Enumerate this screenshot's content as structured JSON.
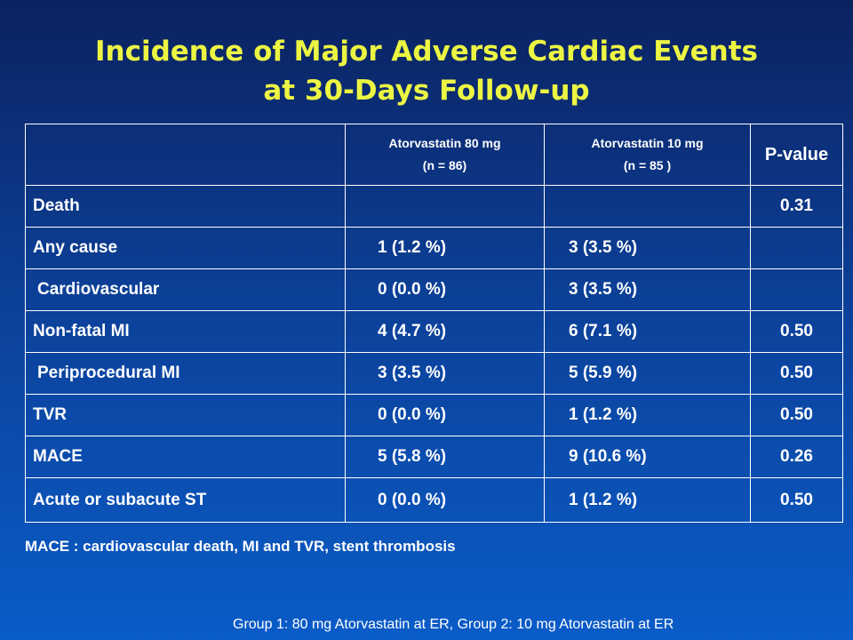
{
  "title": {
    "line1": "Incidence of Major Adverse Cardiac Events",
    "line2": "at 30-Days Follow-up"
  },
  "table": {
    "headers": [
      {
        "name": "",
        "sub": ""
      },
      {
        "name": "Atorvastatin 80 mg",
        "sub": "(n = 86)"
      },
      {
        "name": "Atorvastatin 10 mg",
        "sub": "(n = 85 )"
      },
      {
        "name": "P-value",
        "sub": ""
      }
    ],
    "rows": [
      {
        "label": "Death",
        "g80": "",
        "g10": "",
        "p": "0.31"
      },
      {
        "label": "Any cause",
        "g80": "1 (1.2 %)",
        "g10": "3 (3.5 %)",
        "p": ""
      },
      {
        "label": "Cardiovascular",
        "g80": "0 (0.0 %)",
        "g10": "3 (3.5 %)",
        "p": ""
      },
      {
        "label": "Non-fatal MI",
        "g80": "4 (4.7 %)",
        "g10": "6 (7.1 %)",
        "p": "0.50"
      },
      {
        "label": "Periprocedural MI",
        "g80": "3 (3.5 %)",
        "g10": "5 (5.9 %)",
        "p": "0.50"
      },
      {
        "label": "TVR",
        "g80": "0 (0.0 %)",
        "g10": "1 (1.2 %)",
        "p": "0.50"
      },
      {
        "label": "MACE",
        "g80": "5 (5.8 %)",
        "g10": "9 (10.6 %)",
        "p": "0.26"
      },
      {
        "label": "Acute or subacute ST",
        "g80": "0 (0.0 %)",
        "g10": "1 (1.2 %)",
        "p": "0.50"
      }
    ]
  },
  "footnote": "MACE : cardiovascular death, MI and TVR, stent thrombosis",
  "group_note": "Group 1: 80 mg Atorvastatin at ER, Group 2: 10 mg Atorvastatin at ER"
}
